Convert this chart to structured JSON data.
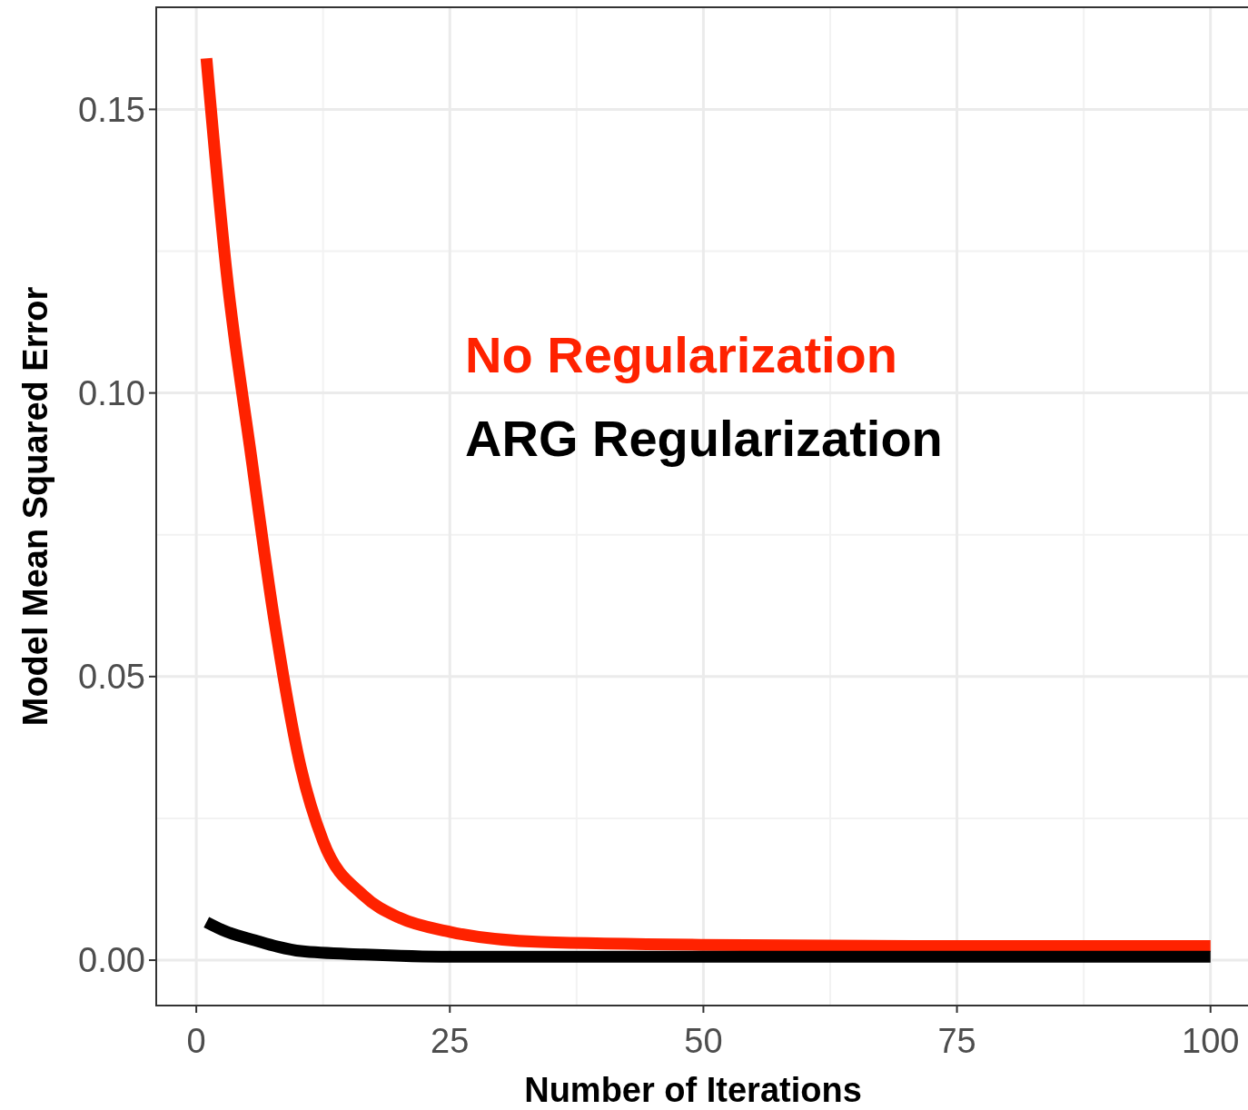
{
  "chart_data": {
    "type": "line",
    "xlabel": "Number of Iterations",
    "ylabel": "Model Mean Squared Error",
    "xlim": [
      -3.95,
      104.95
    ],
    "ylim": [
      -0.008,
      0.168
    ],
    "xticks": [
      0,
      25,
      50,
      75,
      100
    ],
    "yticks": [
      {
        "value": 0,
        "label": "0.00"
      },
      {
        "value": 0.05,
        "label": "0.05"
      },
      {
        "value": 0.1,
        "label": "0.10"
      },
      {
        "value": 0.15,
        "label": "0.15"
      }
    ],
    "grid": true,
    "line_style": "solid",
    "series": [
      {
        "name": "No Regularization",
        "color": "#ff2200",
        "x": [
          1,
          3,
          5.4,
          7.6,
          10.3,
          12.5,
          16.5,
          20,
          25,
          34,
          50,
          75,
          100
        ],
        "values": [
          0.159,
          0.121,
          0.089,
          0.061,
          0.034,
          0.021,
          0.0114,
          0.0075,
          0.005,
          0.0032,
          0.0027,
          0.0025,
          0.0025
        ]
      },
      {
        "name": "ARG Regularization",
        "color": "#000000",
        "x": [
          1,
          3,
          5.8,
          8,
          10.3,
          16.5,
          25,
          50,
          75,
          100
        ],
        "values": [
          0.0067,
          0.005,
          0.0035,
          0.0024,
          0.0016,
          0.001,
          0.0006,
          0.0006,
          0.0006,
          0.0006
        ]
      }
    ]
  }
}
